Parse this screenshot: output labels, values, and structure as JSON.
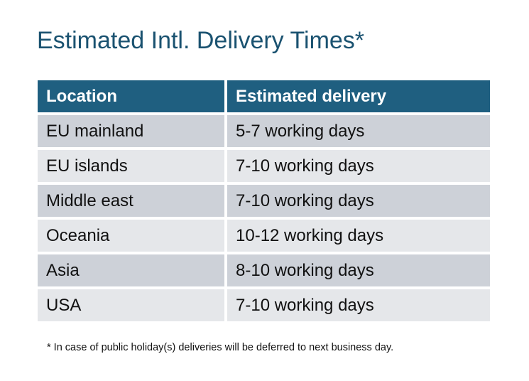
{
  "title": "Estimated Intl. Delivery Times*",
  "table": {
    "headers": [
      "Location",
      "Estimated delivery"
    ],
    "rows": [
      [
        "EU mainland",
        "5-7 working days"
      ],
      [
        "EU islands",
        "7-10 working days"
      ],
      [
        "Middle east",
        "7-10 working days"
      ],
      [
        "Oceania",
        "10-12 working days"
      ],
      [
        "Asia",
        "8-10 working days"
      ],
      [
        "USA",
        "7-10 working days"
      ]
    ]
  },
  "footnote": "* In case of public holiday(s) deliveries will be deferred to next business day.",
  "colors": {
    "header": "#1f5f80",
    "title": "#1a5270",
    "row_dark": "#cdd1d8",
    "row_light": "#e5e7ea"
  }
}
